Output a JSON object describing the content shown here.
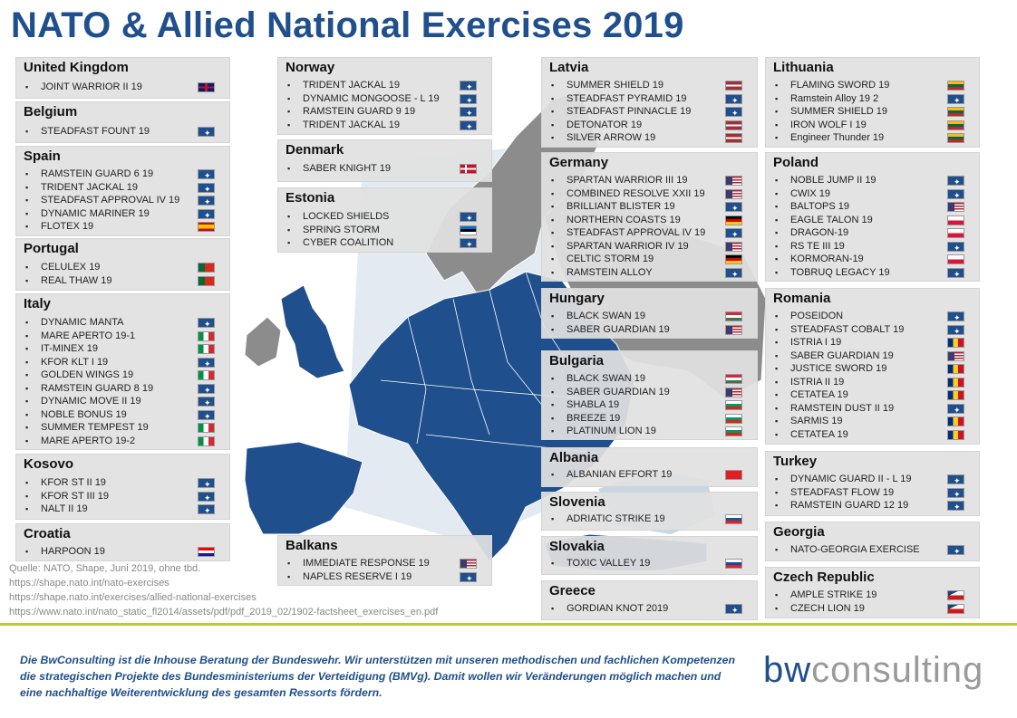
{
  "title": "NATO & Allied National Exercises 2019",
  "boxes": [
    {
      "country": "United Kingdom",
      "items": [
        [
          "JOINT WARRIOR II 19",
          "gb"
        ]
      ]
    },
    {
      "country": "Belgium",
      "items": [
        [
          "STEADFAST FOUNT 19",
          "nato"
        ]
      ]
    },
    {
      "country": "Spain",
      "items": [
        [
          "RAMSTEIN GUARD 6 19",
          "nato"
        ],
        [
          "TRIDENT JACKAL 19",
          "nato"
        ],
        [
          "STEADFAST APPROVAL IV 19",
          "nato"
        ],
        [
          "DYNAMIC MARINER 19",
          "nato"
        ],
        [
          "FLOTEX 19",
          "es"
        ]
      ]
    },
    {
      "country": "Portugal",
      "items": [
        [
          "CELULEX 19",
          "pt"
        ],
        [
          "REAL THAW 19",
          "pt"
        ]
      ]
    },
    {
      "country": "Italy",
      "items": [
        [
          "DYNAMIC MANTA",
          "nato"
        ],
        [
          "MARE APERTO 19-1",
          "it"
        ],
        [
          "IT-MINEX 19",
          "it"
        ],
        [
          "KFOR KLT I 19",
          "nato"
        ],
        [
          "GOLDEN WINGS 19",
          "it"
        ],
        [
          "RAMSTEIN GUARD 8 19",
          "nato"
        ],
        [
          "DYNAMIC MOVE II 19",
          "nato"
        ],
        [
          "NOBLE BONUS 19",
          "nato"
        ],
        [
          "SUMMER TEMPEST 19",
          "it"
        ],
        [
          "MARE APERTO 19-2",
          "it"
        ]
      ]
    },
    {
      "country": "Kosovo",
      "items": [
        [
          "KFOR ST II 19",
          "nato"
        ],
        [
          "KFOR ST III 19",
          "nato"
        ],
        [
          "NALT II 19",
          "nato"
        ]
      ]
    },
    {
      "country": "Croatia",
      "items": [
        [
          "HARPOON 19",
          "hr"
        ]
      ]
    },
    {
      "country": "Norway",
      "items": [
        [
          "TRIDENT JACKAL 19",
          "nato"
        ],
        [
          "DYNAMIC MONGOOSE - L 19",
          "nato"
        ],
        [
          "RAMSTEIN GUARD 9 19",
          "nato"
        ],
        [
          "TRIDENT JACKAL 19",
          "nato"
        ]
      ]
    },
    {
      "country": "Denmark",
      "items": [
        [
          "SABER KNIGHT 19",
          "dk"
        ]
      ]
    },
    {
      "country": "Estonia",
      "items": [
        [
          "LOCKED SHIELDS",
          "nato"
        ],
        [
          "SPRING STORM",
          "ee"
        ],
        [
          "CYBER COALITION",
          "nato"
        ]
      ]
    },
    {
      "country": "Balkans",
      "items": [
        [
          "IMMEDIATE RESPONSE 19",
          "us"
        ],
        [
          "NAPLES RESERVE I 19",
          "nato"
        ]
      ]
    },
    {
      "country": "Latvia",
      "items": [
        [
          "SUMMER SHIELD 19",
          "lv"
        ],
        [
          "STEADFAST PYRAMID 19",
          "nato"
        ],
        [
          "STEADFAST PINNACLE 19",
          "nato"
        ],
        [
          "DETONATOR 19",
          "lv"
        ],
        [
          "SILVER ARROW 19",
          "lv"
        ]
      ]
    },
    {
      "country": "Germany",
      "items": [
        [
          "SPARTAN WARRIOR III 19",
          "us"
        ],
        [
          "COMBINED RESOLVE XXII 19",
          "us"
        ],
        [
          "BRILLIANT BLISTER 19",
          "nato"
        ],
        [
          "NORTHERN COASTS 19",
          "de"
        ],
        [
          "STEADFAST APPROVAL IV 19",
          "nato"
        ],
        [
          "SPARTAN WARRIOR IV 19",
          "us"
        ],
        [
          "CELTIC STORM 19",
          "de"
        ],
        [
          "RAMSTEIN ALLOY",
          "nato"
        ]
      ]
    },
    {
      "country": "Hungary",
      "items": [
        [
          "BLACK SWAN 19",
          "hu"
        ],
        [
          "SABER GUARDIAN 19",
          "us"
        ]
      ]
    },
    {
      "country": "Bulgaria",
      "items": [
        [
          "BLACK SWAN 19",
          "hu"
        ],
        [
          "SABER GUARDIAN 19",
          "us"
        ],
        [
          "SHABLA 19",
          "bg"
        ],
        [
          "BREEZE 19",
          "bg"
        ],
        [
          "PLATINUM LION 19",
          "bg"
        ]
      ]
    },
    {
      "country": "Albania",
      "items": [
        [
          "ALBANIAN EFFORT 19",
          "al"
        ]
      ]
    },
    {
      "country": "Slovenia",
      "items": [
        [
          "ADRIATIC STRIKE 19",
          "si"
        ]
      ]
    },
    {
      "country": "Slovakia",
      "items": [
        [
          "TOXIC VALLEY 19",
          "sk"
        ]
      ]
    },
    {
      "country": "Greece",
      "items": [
        [
          "GORDIAN KNOT 2019",
          "nato"
        ]
      ]
    },
    {
      "country": "Lithuania",
      "items": [
        [
          "FLAMING SWORD 19",
          "lt"
        ],
        [
          "Ramstein Alloy 19 2",
          "nato"
        ],
        [
          "SUMMER SHIELD 19",
          "lt"
        ],
        [
          "IRON WOLF I 19",
          "lt"
        ],
        [
          "Engineer Thunder 19",
          "lt"
        ]
      ]
    },
    {
      "country": "Poland",
      "items": [
        [
          "NOBLE JUMP II 19",
          "nato"
        ],
        [
          "CWIX 19",
          "nato"
        ],
        [
          "BALTOPS 19",
          "us"
        ],
        [
          "EAGLE TALON 19",
          "pl"
        ],
        [
          "DRAGON-19",
          "pl"
        ],
        [
          "RS TE III 19",
          "nato"
        ],
        [
          "KORMORAN-19",
          "pl"
        ],
        [
          "TOBRUQ LEGACY 19",
          "nato"
        ]
      ]
    },
    {
      "country": "Romania",
      "items": [
        [
          "POSEIDON",
          "nato"
        ],
        [
          "STEADFAST COBALT 19",
          "nato"
        ],
        [
          "ISTRIA I 19",
          "ro"
        ],
        [
          "SABER GUARDIAN 19",
          "us"
        ],
        [
          "JUSTICE SWORD 19",
          "ro"
        ],
        [
          "ISTRIA II 19",
          "ro"
        ],
        [
          "CETATEA 19",
          "ro"
        ],
        [
          "RAMSTEIN DUST II 19",
          "nato"
        ],
        [
          "SARMIS 19",
          "ro"
        ],
        [
          "CETATEA 19",
          "ro"
        ]
      ]
    },
    {
      "country": "Turkey",
      "items": [
        [
          "DYNAMIC GUARD II - L 19",
          "nato"
        ],
        [
          "STEADFAST FLOW 19",
          "nato"
        ],
        [
          "RAMSTEIN GUARD 12 19",
          "nato"
        ]
      ]
    },
    {
      "country": "Georgia",
      "items": [
        [
          "NATO-GEORGIA EXERCISE",
          "nato"
        ]
      ]
    },
    {
      "country": "Czech Republic",
      "items": [
        [
          "AMPLE STRIKE 19",
          "cz"
        ],
        [
          "CZECH LION 19",
          "cz"
        ]
      ]
    }
  ],
  "sources": [
    "Quelle: NATO, Shape, Juni 2019, ohne tbd.",
    "https://shape.nato.int/nato-exercises",
    "https://shape.nato.int/exercises/allied-national-exercises",
    "https://www.nato.int/nato_static_fl2014/assets/pdf/pdf_2019_02/1902-factsheet_exercises_en.pdf"
  ],
  "footer": "Die BwConsulting ist die Inhouse Beratung der Bundeswehr. Wir unterstützen mit unseren methodischen und fachlichen Kompetenzen die strategischen Projekte des Bundesministeriums der Verteidigung (BMVg). Damit wollen wir Veränderungen möglich machen und eine nachhaltige Weiterentwicklung des gesamten Ressorts fördern.",
  "logo": {
    "part1": "bw",
    "part2": "consulting"
  },
  "colors": {
    "title": "#1f4f8c",
    "nato_member": "#1f4f8c",
    "non_member": "#8c8c8c",
    "sea": "#c9d6e3",
    "accent_line": "#b8c93a"
  }
}
